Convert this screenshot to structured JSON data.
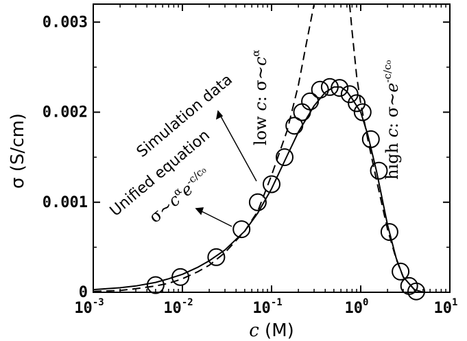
{
  "chart_data": {
    "type": "scatter",
    "xlabel_var": "c",
    "xlabel_unit": " (M)",
    "ylabel": "σ (S/cm)",
    "xscale": "log",
    "xlim": [
      0.001,
      10
    ],
    "ylim": [
      0,
      0.0032
    ],
    "x_ticks": [
      {
        "base": "10",
        "exp": "-3",
        "value": 0.001
      },
      {
        "base": "10",
        "exp": "-2",
        "value": 0.01
      },
      {
        "base": "10",
        "exp": "-1",
        "value": 0.1
      },
      {
        "base": "10",
        "exp": "0",
        "value": 1
      },
      {
        "base": "10",
        "exp": "1",
        "value": 10
      }
    ],
    "y_ticks": [
      {
        "label": "0",
        "value": 0
      },
      {
        "label": "0.001",
        "value": 0.001
      },
      {
        "label": "0.002",
        "value": 0.002
      },
      {
        "label": "0.003",
        "value": 0.003
      }
    ],
    "grid": false,
    "series": [
      {
        "name": "Simulation data",
        "style": "open-circle",
        "x": [
          0.005,
          0.0095,
          0.024,
          0.046,
          0.07,
          0.1,
          0.14,
          0.18,
          0.22,
          0.27,
          0.35,
          0.45,
          0.58,
          0.75,
          0.9,
          1.05,
          1.3,
          1.6,
          2.1,
          2.8,
          3.5,
          4.2
        ],
        "y": [
          8e-05,
          0.00017,
          0.00039,
          0.0007,
          0.001,
          0.0012,
          0.0015,
          0.00185,
          0.002,
          0.00212,
          0.00225,
          0.00228,
          0.00227,
          0.0022,
          0.0021,
          0.002,
          0.0017,
          0.00135,
          0.00067,
          0.00023,
          7e-05,
          1e-05
        ]
      },
      {
        "name": "Unified equation",
        "style": "solid",
        "x": [
          0.001,
          0.002,
          0.003,
          0.005,
          0.007,
          0.01,
          0.015,
          0.02,
          0.03,
          0.05,
          0.07,
          0.1,
          0.15,
          0.2,
          0.3,
          0.4,
          0.5,
          0.6,
          0.7,
          0.8,
          1.0,
          1.2,
          1.5,
          2.0,
          2.5,
          3.0,
          4.0,
          5.0,
          6.0,
          8.0,
          10.0
        ],
        "y": [
          3e-05,
          5e-05,
          7e-05,
          0.00011,
          0.00015,
          0.0002,
          0.00028,
          0.00035,
          0.00047,
          0.00068,
          0.00088,
          0.00115,
          0.00152,
          0.00178,
          0.00207,
          0.00222,
          0.00228,
          0.00228,
          0.00223,
          0.00215,
          0.002,
          0.00175,
          0.00135,
          0.00075,
          0.00038,
          0.00017,
          3e-05,
          0.0,
          0.0,
          0.0,
          0.0
        ]
      },
      {
        "name": "low c fit",
        "style": "dashed",
        "x": [
          0.001,
          0.002,
          0.003,
          0.005,
          0.007,
          0.01,
          0.015,
          0.02,
          0.03,
          0.05,
          0.07,
          0.1,
          0.15,
          0.2,
          0.25,
          0.3
        ],
        "y": [
          1e-05,
          2e-05,
          4e-05,
          7e-05,
          0.0001,
          0.00015,
          0.00023,
          0.0003,
          0.00044,
          0.00068,
          0.0009,
          0.0013,
          0.0018,
          0.0023,
          0.0028,
          0.0032
        ]
      },
      {
        "name": "high c fit",
        "style": "dashed",
        "x": [
          0.75,
          0.8,
          0.9,
          1.0,
          1.2,
          1.5,
          2.0,
          2.5,
          3.0,
          4.0,
          5.0,
          6.0,
          8.0,
          10.0
        ],
        "y": [
          0.0032,
          0.0029,
          0.0024,
          0.0021,
          0.0017,
          0.00125,
          0.0007,
          0.00037,
          0.00017,
          3e-05,
          0.0,
          0.0,
          0.0,
          0.0
        ]
      }
    ],
    "annotations": {
      "simulation": "Simulation data",
      "unified": "Unified equation",
      "unified_formula": {
        "sigma": "σ~",
        "c": "c",
        "alpha": "α",
        "e": "e",
        "exp": "-c/c₀"
      },
      "low": {
        "prefix": "low ",
        "c": "c",
        "middle": ": σ~",
        "c2": "c",
        "exp": "α"
      },
      "high": {
        "prefix": "high ",
        "c": "c",
        "middle": ": σ~",
        "e": "e",
        "exp": "-c/c₀"
      }
    }
  }
}
